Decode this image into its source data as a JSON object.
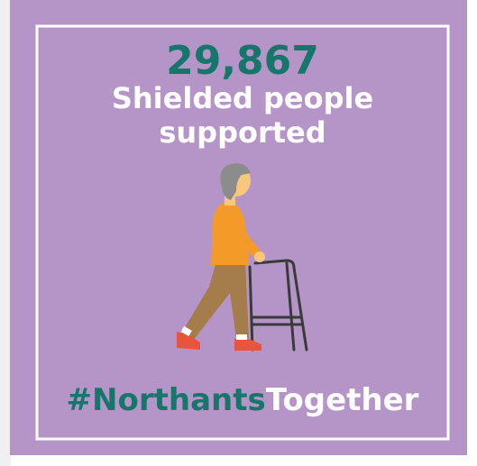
{
  "stat": "29,867",
  "caption": [
    "Shielded people",
    "supported"
  ],
  "hashtag": {
    "prefix": "#Northants",
    "suffix": "Together"
  }
}
